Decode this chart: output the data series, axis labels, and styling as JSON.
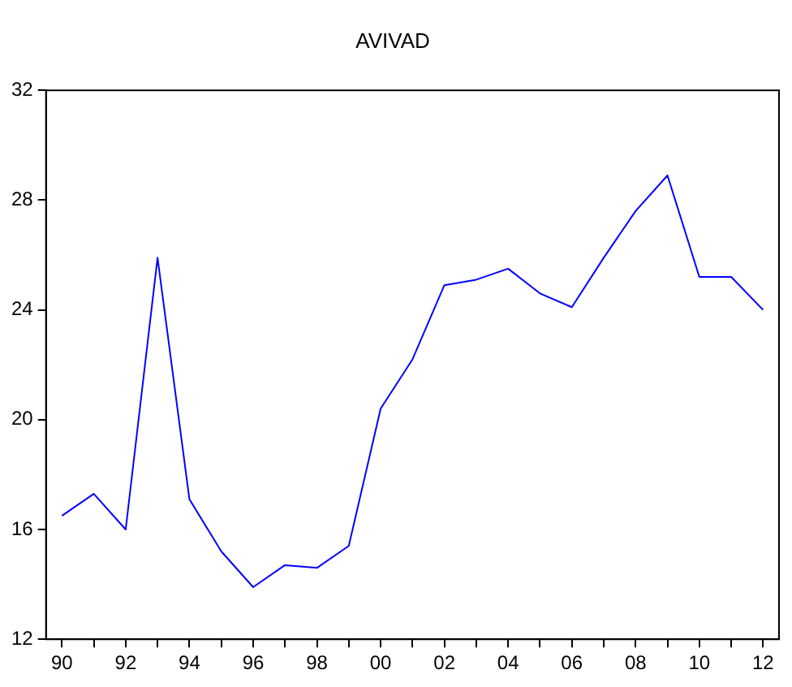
{
  "chart_data": {
    "type": "line",
    "title": "AVIVAD",
    "categories": [
      "90",
      null,
      "92",
      null,
      "94",
      null,
      "96",
      null,
      "98",
      null,
      "00",
      null,
      "02",
      null,
      "04",
      null,
      "06",
      null,
      "08",
      null,
      "10",
      null,
      "12"
    ],
    "series": [
      {
        "color": "#0000ff",
        "values": [
          16.5,
          17.3,
          16.0,
          25.9,
          17.1,
          15.2,
          13.9,
          14.7,
          14.6,
          15.4,
          20.4,
          22.2,
          24.9,
          25.1,
          25.5,
          24.6,
          24.1,
          25.9,
          27.6,
          28.9,
          25.2,
          25.2,
          24.0
        ]
      }
    ],
    "ylim": [
      12,
      32
    ],
    "yticks": [
      12,
      16,
      20,
      24,
      28,
      32
    ],
    "legend": false,
    "marker": "none",
    "line_style": "solid"
  }
}
